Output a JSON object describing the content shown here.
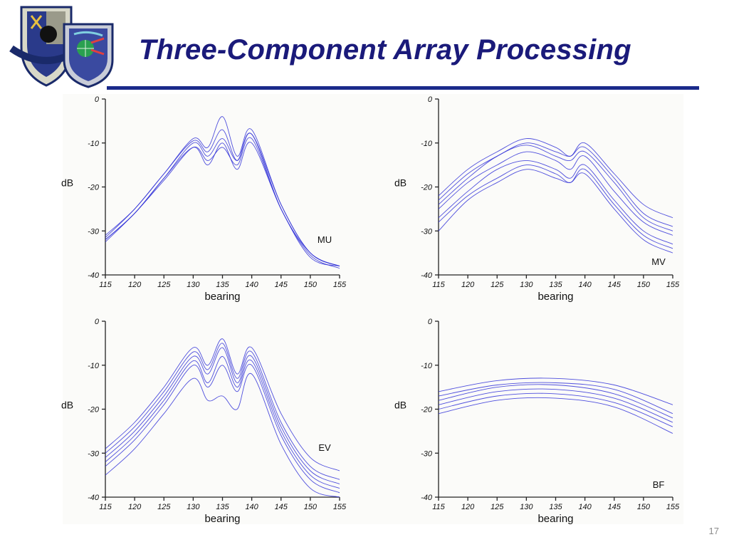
{
  "slide": {
    "title": "Three-Component Array Processing",
    "page_number": "17",
    "accent_color": "#1a2a8a",
    "title_color": "#1a1a7a",
    "curve_color": "#3030d8"
  },
  "logos": [
    {
      "name": "air-force-isr-agency-seal",
      "text": "AIR FORCE ISR AGENCY"
    },
    {
      "name": "air-force-technical-applications-center-seal",
      "text": "AIR FORCE TECHNICAL APPLICATIONS CENTER"
    }
  ],
  "chart_data": [
    {
      "type": "line",
      "label": "MU",
      "xlabel": "bearing",
      "ylabel": "dB",
      "xlim": [
        115,
        155
      ],
      "ylim": [
        -40,
        0
      ],
      "xticks": [
        "115",
        "120",
        "125",
        "130",
        "135",
        "140",
        "145",
        "150",
        "155"
      ],
      "yticks": [
        "0",
        "-10",
        "-20",
        "-30",
        "-40"
      ],
      "x": [
        115,
        120,
        125,
        130,
        132.5,
        135,
        137.5,
        140,
        145,
        150,
        155
      ],
      "series": [
        {
          "values": [
            -32,
            -26,
            -18,
            -10,
            -13,
            -9,
            -14,
            -8,
            -25,
            -35,
            -38
          ]
        },
        {
          "values": [
            -31,
            -25,
            -17,
            -9,
            -11,
            -4,
            -13,
            -7,
            -24,
            -35,
            -38
          ]
        },
        {
          "values": [
            -32,
            -26,
            -18,
            -11,
            -15,
            -10,
            -16,
            -10,
            -25,
            -36,
            -38
          ]
        },
        {
          "values": [
            -31.5,
            -25,
            -17,
            -9.5,
            -12,
            -7,
            -14,
            -8,
            -24,
            -35,
            -38
          ]
        },
        {
          "values": [
            -32.5,
            -26,
            -18.5,
            -11,
            -14,
            -11,
            -15,
            -9,
            -25,
            -35.5,
            -38.5
          ]
        }
      ]
    },
    {
      "type": "line",
      "label": "MV",
      "xlabel": "bearing",
      "ylabel": "dB",
      "xlim": [
        115,
        155
      ],
      "ylim": [
        -40,
        0
      ],
      "xticks": [
        "115",
        "120",
        "125",
        "130",
        "135",
        "140",
        "145",
        "150",
        "155"
      ],
      "yticks": [
        "0",
        "-10",
        "-20",
        "-30",
        "-40"
      ],
      "x": [
        115,
        120,
        125,
        130,
        135,
        137.5,
        140,
        145,
        150,
        155
      ],
      "series": [
        {
          "values": [
            -22,
            -16,
            -12,
            -9,
            -11,
            -13,
            -10,
            -17,
            -24,
            -27
          ]
        },
        {
          "values": [
            -23,
            -17,
            -13,
            -10,
            -12,
            -13,
            -11,
            -18,
            -26,
            -29
          ]
        },
        {
          "values": [
            -24,
            -18,
            -13,
            -10.5,
            -13,
            -14,
            -12,
            -19,
            -27,
            -30
          ]
        },
        {
          "values": [
            -25,
            -19,
            -15,
            -12,
            -14,
            -16,
            -13,
            -21,
            -28,
            -31
          ]
        },
        {
          "values": [
            -27,
            -21,
            -16,
            -14,
            -16,
            -18,
            -15,
            -23,
            -30,
            -33
          ]
        },
        {
          "values": [
            -28,
            -22,
            -18,
            -15,
            -17,
            -19,
            -16,
            -24,
            -31,
            -34
          ]
        },
        {
          "values": [
            -30,
            -23,
            -19,
            -16,
            -18,
            -19,
            -17,
            -25,
            -32,
            -35
          ]
        }
      ]
    },
    {
      "type": "line",
      "label": "EV",
      "xlabel": "bearing",
      "ylabel": "dB",
      "xlim": [
        115,
        155
      ],
      "ylim": [
        -40,
        0
      ],
      "xticks": [
        "115",
        "120",
        "125",
        "130",
        "135",
        "140",
        "145",
        "150",
        "155"
      ],
      "yticks": [
        "0",
        "-10",
        "-20",
        "-30",
        "-40"
      ],
      "x": [
        115,
        120,
        125,
        130,
        132.5,
        135,
        137.5,
        140,
        145,
        150,
        155
      ],
      "series": [
        {
          "values": [
            -29,
            -23,
            -15,
            -6,
            -10,
            -4,
            -12,
            -6,
            -21,
            -31,
            -34
          ]
        },
        {
          "values": [
            -30,
            -24,
            -16,
            -7,
            -11,
            -5,
            -13,
            -7,
            -23,
            -33,
            -36
          ]
        },
        {
          "values": [
            -31,
            -25,
            -17,
            -8,
            -12,
            -6,
            -14,
            -8,
            -24,
            -34,
            -37
          ]
        },
        {
          "values": [
            -32,
            -26,
            -18,
            -9,
            -14,
            -8,
            -15,
            -9,
            -25,
            -35,
            -38
          ]
        },
        {
          "values": [
            -33,
            -27,
            -19,
            -10,
            -15,
            -10,
            -16,
            -10,
            -26,
            -36,
            -39
          ]
        },
        {
          "values": [
            -35,
            -29,
            -21,
            -13,
            -18,
            -17,
            -20,
            -12,
            -28,
            -38,
            -40
          ]
        }
      ]
    },
    {
      "type": "line",
      "label": "BF",
      "xlabel": "bearing",
      "ylabel": "dB",
      "xlim": [
        115,
        155
      ],
      "ylim": [
        -40,
        0
      ],
      "xticks": [
        "115",
        "120",
        "125",
        "130",
        "135",
        "140",
        "145",
        "150",
        "155"
      ],
      "yticks": [
        "0",
        "-10",
        "-20",
        "-30",
        "-40"
      ],
      "x": [
        115,
        125,
        135,
        145,
        155
      ],
      "series": [
        {
          "values": [
            -16,
            -13.5,
            -13,
            -14.5,
            -19
          ]
        },
        {
          "values": [
            -17,
            -14.5,
            -14,
            -15.5,
            -21
          ]
        },
        {
          "values": [
            -18,
            -15,
            -14.5,
            -16.5,
            -22
          ]
        },
        {
          "values": [
            -19,
            -16,
            -15.5,
            -17.5,
            -23
          ]
        },
        {
          "values": [
            -20,
            -17,
            -16.5,
            -18.5,
            -24
          ]
        },
        {
          "values": [
            -21,
            -18,
            -17.5,
            -19.5,
            -25.5
          ]
        }
      ]
    }
  ]
}
